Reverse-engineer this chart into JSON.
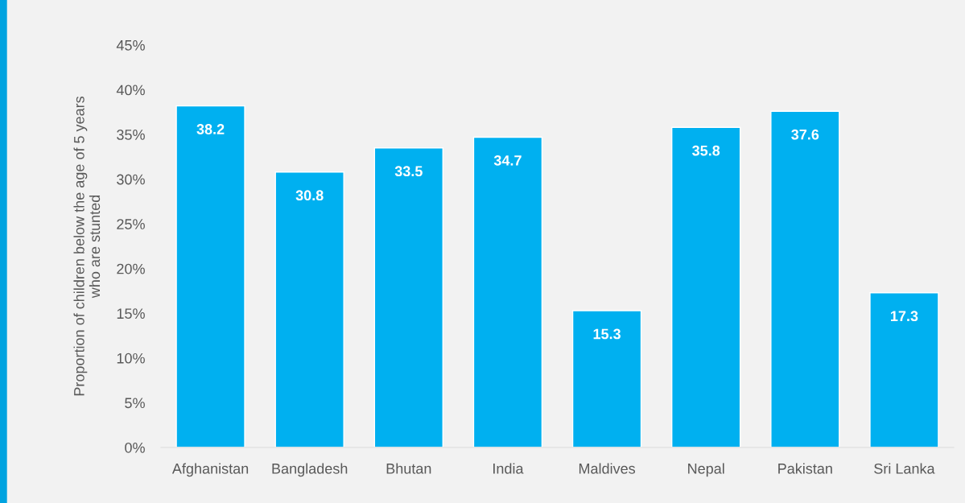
{
  "chart_data": {
    "type": "bar",
    "ylabel": "Proportion of children below the age of 5 years\nwho are stunted",
    "categories": [
      "Afghanistan",
      "Bangladesh",
      "Bhutan",
      "India",
      "Maldives",
      "Nepal",
      "Pakistan",
      "Sri Lanka"
    ],
    "values": [
      38.2,
      30.8,
      33.5,
      34.7,
      15.3,
      35.8,
      37.6,
      17.3
    ],
    "color": "#00b0f0",
    "ylim": [
      0,
      45
    ],
    "yticks": [
      {
        "value": 0,
        "label": "0%"
      },
      {
        "value": 5,
        "label": "5%"
      },
      {
        "value": 10,
        "label": "10%"
      },
      {
        "value": 15,
        "label": "15%"
      },
      {
        "value": 20,
        "label": "20%"
      },
      {
        "value": 25,
        "label": "25%"
      },
      {
        "value": 30,
        "label": "30%"
      },
      {
        "value": 35,
        "label": "35%"
      },
      {
        "value": 40,
        "label": "40%"
      },
      {
        "value": 45,
        "label": "45%"
      }
    ],
    "data_labels": true,
    "grid": false,
    "legend": false
  }
}
